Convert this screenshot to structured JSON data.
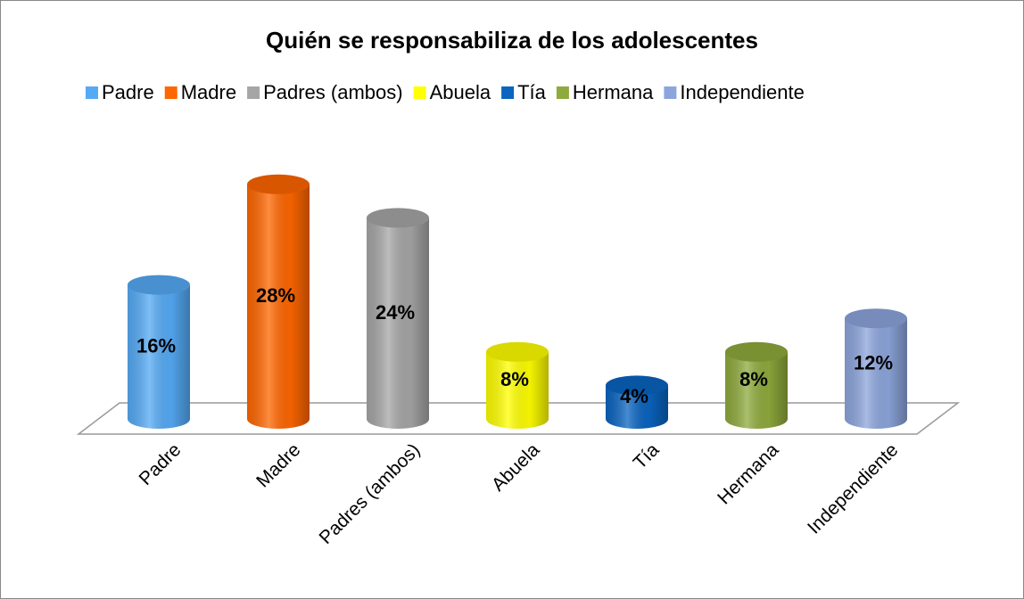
{
  "chart_data": {
    "type": "bar",
    "title": "Quién se responsabiliza de los adolescentes",
    "categories": [
      "Padre",
      "Madre",
      "Padres (ambos)",
      "Abuela",
      "Tía",
      "Hermana",
      "Independiente"
    ],
    "values": [
      16,
      28,
      24,
      8,
      4,
      8,
      12
    ],
    "value_labels": [
      "16%",
      "28%",
      "24%",
      "8%",
      "4%",
      "8%",
      "12%"
    ],
    "colors": [
      "#55aaf5",
      "#ff6600",
      "#a6a6a6",
      "#ffff00",
      "#0a64c0",
      "#8faa3c",
      "#8ca5dc"
    ],
    "legend": "top"
  }
}
